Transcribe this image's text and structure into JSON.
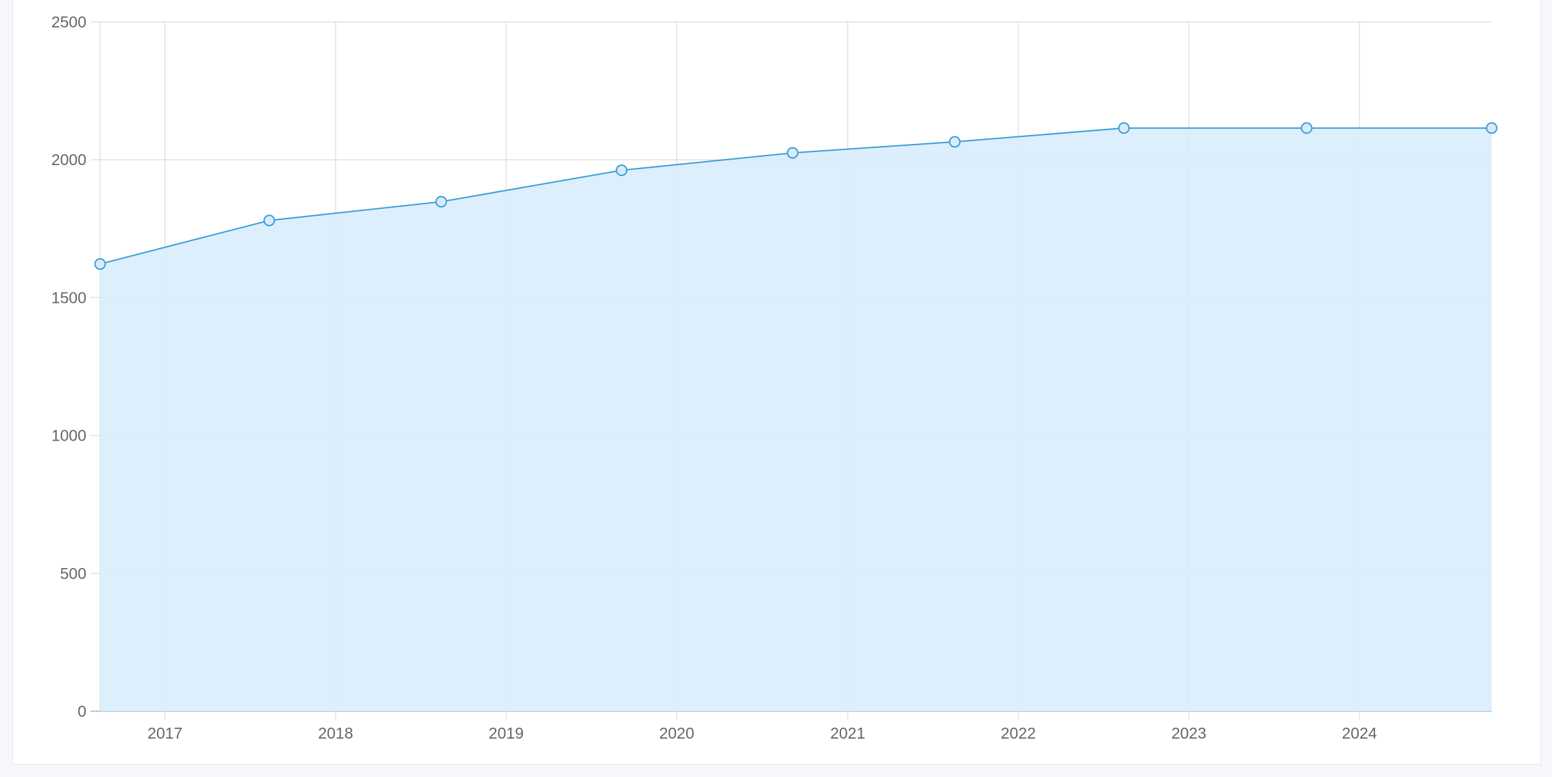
{
  "chart_data": {
    "type": "area",
    "title": "",
    "xlabel": "",
    "ylabel": "",
    "x_axis": {
      "type": "date",
      "min": "2016-08-15",
      "max": "2024-10-10",
      "tick_labels": [
        "2017",
        "2018",
        "2019",
        "2020",
        "2021",
        "2022",
        "2023",
        "2024"
      ]
    },
    "y_axis": {
      "min": 0,
      "max": 2500,
      "tick_labels": [
        "0",
        "500",
        "1000",
        "1500",
        "2000",
        "2500"
      ]
    },
    "grid": true,
    "legend": "none",
    "series": [
      {
        "points": [
          {
            "x": "2016-08-15",
            "y": 1622
          },
          {
            "x": "2017-08-12",
            "y": 1780
          },
          {
            "x": "2018-08-15",
            "y": 1848
          },
          {
            "x": "2019-09-05",
            "y": 1962
          },
          {
            "x": "2020-09-05",
            "y": 2025
          },
          {
            "x": "2021-08-18",
            "y": 2065
          },
          {
            "x": "2022-08-15",
            "y": 2115
          },
          {
            "x": "2023-09-10",
            "y": 2115
          },
          {
            "x": "2024-10-10",
            "y": 2115
          }
        ],
        "line_color": "#3d9fd6",
        "fill_color": "#d7ebfb"
      }
    ]
  }
}
